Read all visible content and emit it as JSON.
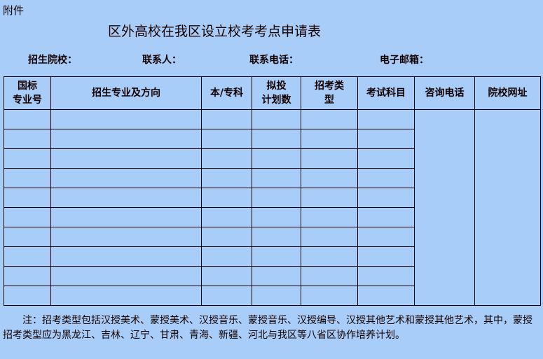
{
  "attachment_label": "附件",
  "title": "区外高校在我区设立校考考点申请表",
  "meta": {
    "school": "招生院校：",
    "contact": "联系人：",
    "phone": "联系电话：",
    "email": "电子邮箱："
  },
  "table": {
    "headers": [
      "国标专业号",
      "招生专业及方向",
      "本/专科",
      "拟投计划数",
      "招考类型",
      "考试科目",
      "咨询电话",
      "院校网址"
    ],
    "header_lines": [
      [
        "国标",
        "专业号"
      ],
      [
        "招生专业及方向"
      ],
      [
        "本/专科"
      ],
      [
        "拟投",
        "计划数"
      ],
      [
        "招考类",
        "型"
      ],
      [
        "考试科目"
      ],
      [
        "咨询电话"
      ],
      [
        "院校网址"
      ]
    ],
    "row_count": 10
  },
  "note": "注：招考类型包括汉授美术、蒙授美术、汉授音乐、蒙授音乐、汉授编导、汉授其他艺术和蒙授其他艺术，其中，蒙授招考类型应为黑龙江、吉林、辽宁、甘肃、青海、新疆、河北与我区等八省区协作培养计划。"
}
